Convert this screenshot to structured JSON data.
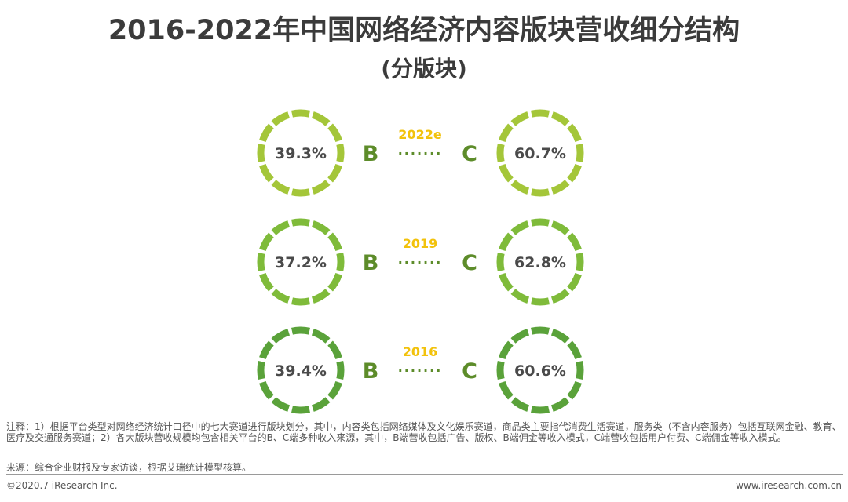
{
  "header": {
    "title": "2016-2022年中国网络经济内容版块营收细分结构",
    "subtitle": "(分版块)"
  },
  "chart_data": {
    "type": "pie",
    "title": "2016-2022年中国网络经济内容版块营收细分结构",
    "subtitle": "(分版块)",
    "categories": [
      "B",
      "C"
    ],
    "separator": "·······",
    "series": [
      {
        "name": "2022e",
        "values": [
          39.3,
          60.7
        ],
        "labels": [
          "39.3%",
          "60.7%"
        ],
        "color": "#a4c639",
        "year_color": "#f2c20c"
      },
      {
        "name": "2019",
        "values": [
          37.2,
          62.8
        ],
        "labels": [
          "37.2%",
          "62.8%"
        ],
        "color": "#7fbb3a",
        "year_color": "#f2c20c"
      },
      {
        "name": "2016",
        "values": [
          39.4,
          60.6
        ],
        "labels": [
          "39.4%",
          "60.6%"
        ],
        "color": "#5aa23a",
        "year_color": "#f2c20c"
      }
    ],
    "letter_color": "#5d8c2a"
  },
  "footer": {
    "note": "注释：1）根据平台类型对网络经济统计口径中的七大赛道进行版块划分，其中，内容类包括网络媒体及文化娱乐赛道，商品类主要指代消费生活赛道，服务类（不含内容服务）包括互联网金融、教育、医疗及交通服务赛道；2）各大版块营收规模均包含相关平台的B、C端多种收入来源，其中，B端营收包括广告、版权、B端佣金等收入模式，C端营收包括用户付费、C端佣金等收入模式。",
    "source": "来源：综合企业财报及专家访谈，根据艾瑞统计模型核算。",
    "copyright": "©2020.7 iResearch Inc.",
    "website": "www.iresearch.com.cn"
  }
}
